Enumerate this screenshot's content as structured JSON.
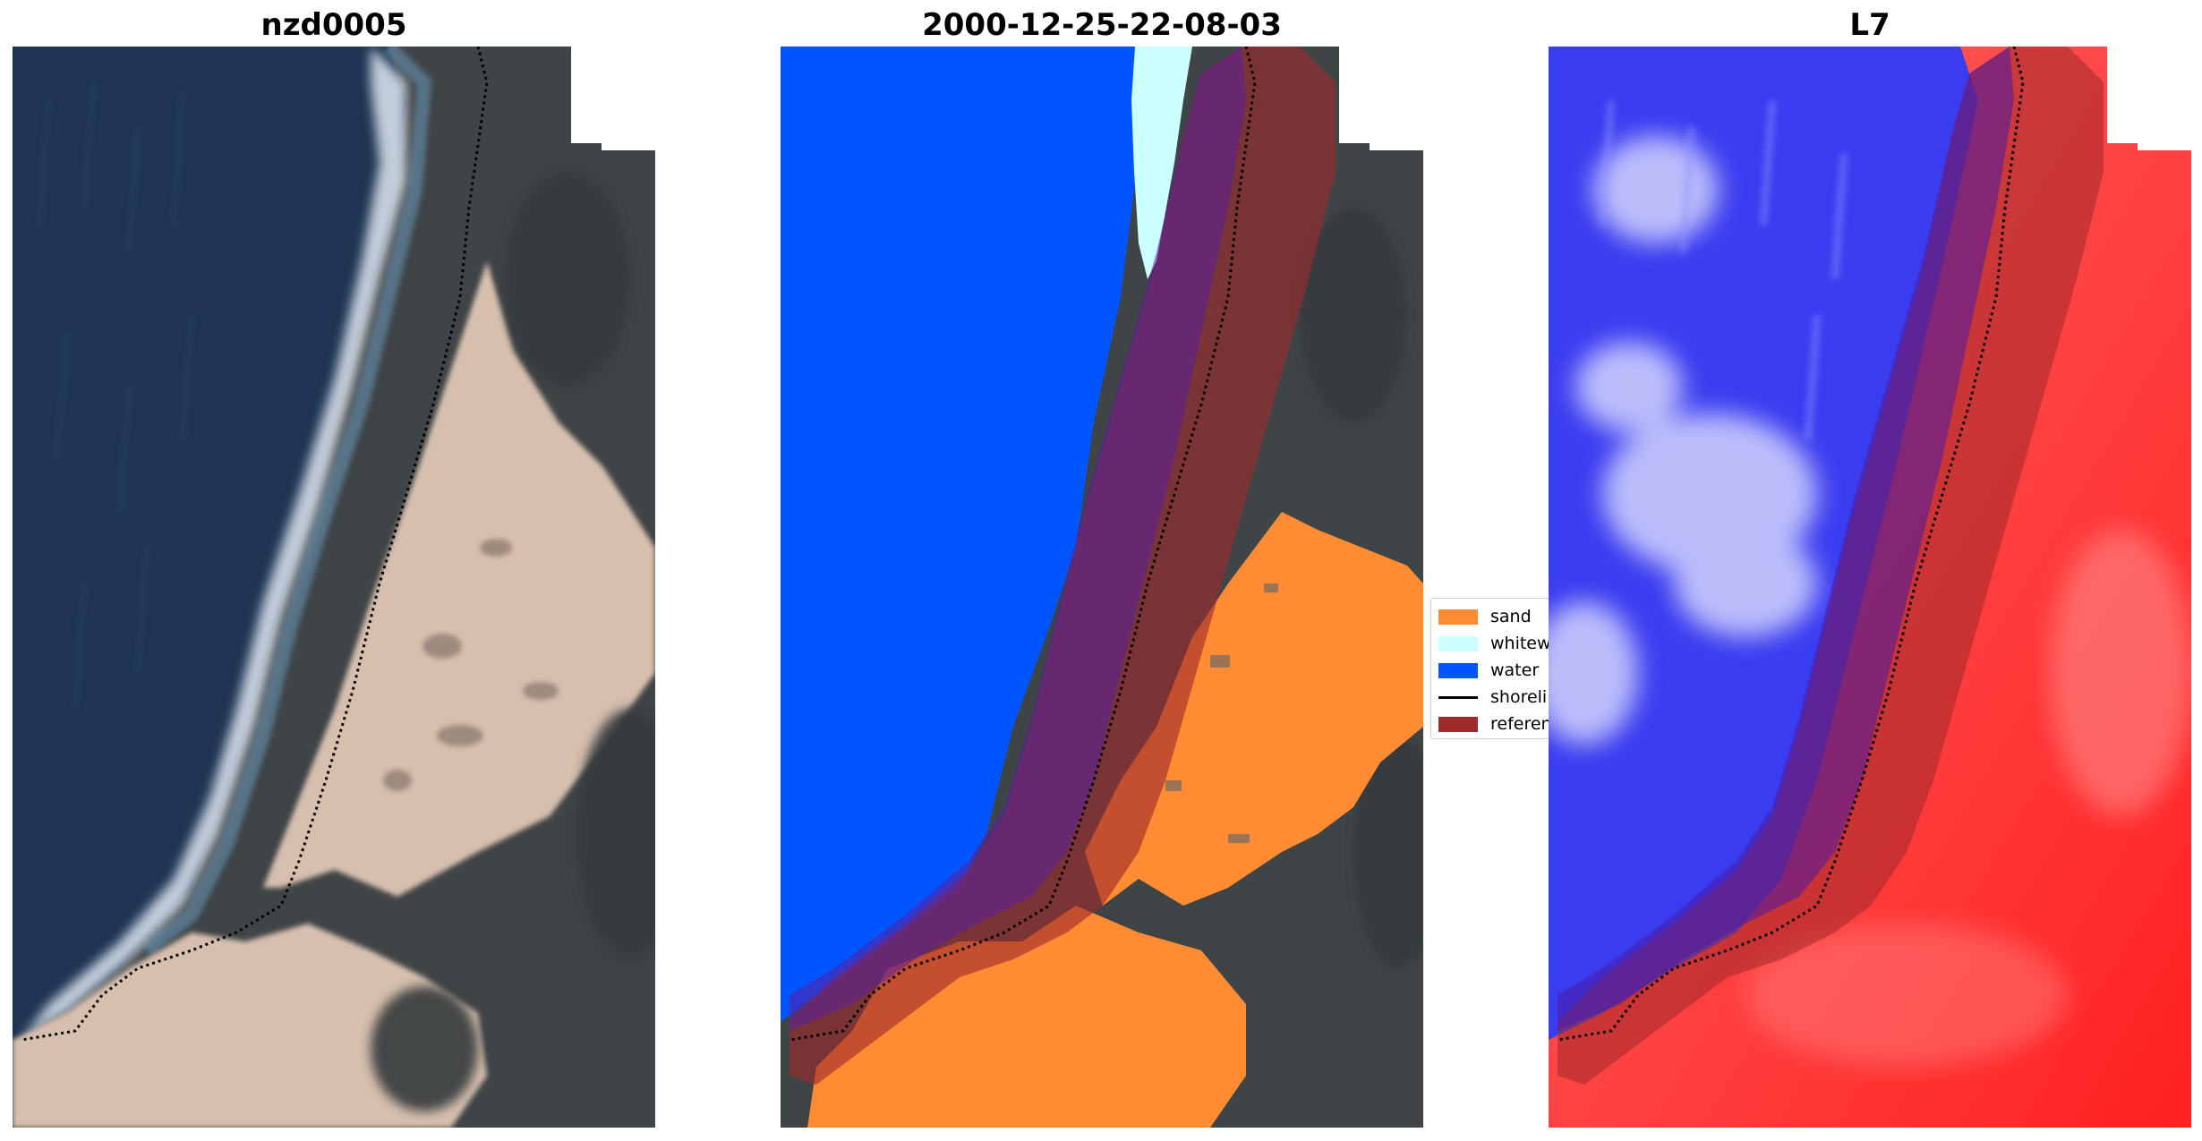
{
  "panels": [
    {
      "title": "nzd0005"
    },
    {
      "title": "2000-12-25-22-08-03"
    },
    {
      "title": "L7"
    }
  ],
  "legend": {
    "items": [
      {
        "label": "sand",
        "color": "#ff8c33",
        "kind": "patch"
      },
      {
        "label": "whitewater",
        "color": "#ccffff",
        "kind": "patch"
      },
      {
        "label": "water",
        "color": "#0055ff",
        "kind": "patch"
      },
      {
        "label": "shoreline",
        "color": "#000000",
        "kind": "line"
      },
      {
        "label": "reference shoreline buffer",
        "color": "#9e2a2b",
        "kind": "patch"
      }
    ]
  },
  "colors": {
    "ocean_rgb": "#1e3452",
    "vegetation": "#3b4043",
    "beach_sand": "#d7bfae",
    "surf": "#dfe8f3",
    "class_water": "#0055ff",
    "class_sand": "#ff8c33",
    "class_whitewater": "#ccffff",
    "buffer": "#9e2a2b",
    "mndwi_negative": "#ff2222",
    "mndwi_positive": "#2233ff"
  }
}
